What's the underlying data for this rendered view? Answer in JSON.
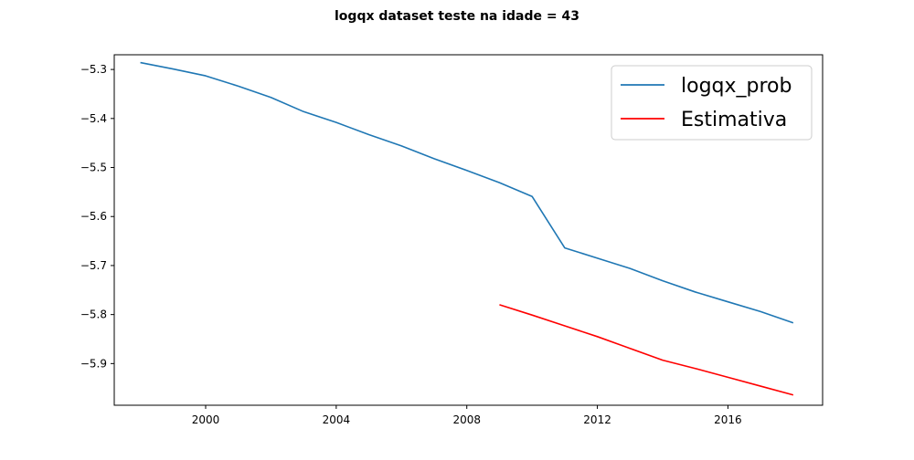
{
  "chart_data": {
    "type": "line",
    "title": "logqx dataset teste na idade = 43",
    "xlabel": "",
    "ylabel": "",
    "xlim": [
      1997.2,
      2018.9
    ],
    "ylim": [
      -5.985,
      -5.27
    ],
    "xticks": [
      2000,
      2004,
      2008,
      2012,
      2016
    ],
    "xtick_labels": [
      "2000",
      "2004",
      "2008",
      "2012",
      "2016"
    ],
    "yticks": [
      -5.3,
      -5.4,
      -5.5,
      -5.6,
      -5.7,
      -5.8,
      -5.9
    ],
    "ytick_labels": [
      "−5.3",
      "−5.4",
      "−5.5",
      "−5.6",
      "−5.7",
      "−5.8",
      "−5.9"
    ],
    "grid": false,
    "legend": {
      "position": "top-right",
      "entries": [
        "logqx_prob",
        "Estimativa"
      ]
    },
    "series": [
      {
        "name": "logqx_prob",
        "color": "#1f77b4",
        "x": [
          1998,
          1999,
          2000,
          2001,
          2002,
          2003,
          2004,
          2005,
          2006,
          2007,
          2008,
          2009,
          2010,
          2011,
          2012,
          2013,
          2014,
          2015,
          2016,
          2017,
          2018
        ],
        "y": [
          -5.286,
          -5.299,
          -5.313,
          -5.334,
          -5.357,
          -5.386,
          -5.408,
          -5.433,
          -5.456,
          -5.482,
          -5.506,
          -5.531,
          -5.559,
          -5.664,
          -5.685,
          -5.706,
          -5.731,
          -5.754,
          -5.774,
          -5.794,
          -5.817
        ]
      },
      {
        "name": "Estimativa",
        "color": "#ff0000",
        "x": [
          2009,
          2010,
          2011,
          2012,
          2013,
          2014,
          2015,
          2016,
          2017,
          2018
        ],
        "y": [
          -5.78,
          -5.801,
          -5.823,
          -5.845,
          -5.869,
          -5.893,
          -5.91,
          -5.928,
          -5.946,
          -5.964
        ]
      }
    ]
  }
}
